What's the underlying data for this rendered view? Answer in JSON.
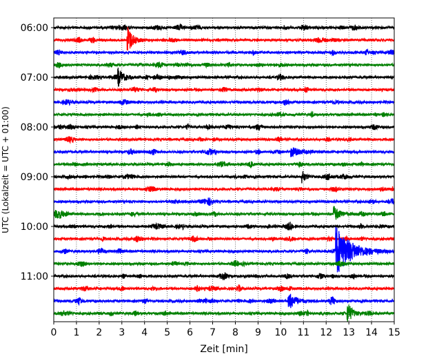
{
  "chart_data": {
    "type": "line",
    "title": "",
    "xlabel": "Zeit  [min]",
    "ylabel": "UTC (Lokalzeit = UTC + 01:00)",
    "xlim": [
      0,
      15
    ],
    "x_ticks": [
      0,
      1,
      2,
      3,
      4,
      5,
      6,
      7,
      8,
      9,
      10,
      11,
      12,
      13,
      14,
      15
    ],
    "x_tick_labels": [
      "0",
      "1",
      "2",
      "3",
      "4",
      "5",
      "6",
      "7",
      "8",
      "9",
      "10",
      "11",
      "12",
      "13",
      "14",
      "15"
    ],
    "y_tick_labels": [
      "06:00",
      "07:00",
      "08:00",
      "09:00",
      "10:00",
      "11:00"
    ],
    "y_tick_rows": [
      0,
      4,
      8,
      12,
      16,
      20
    ],
    "grid": "vertical dotted",
    "legend": "none",
    "trace_interval_minutes": 15,
    "trace_count": 24,
    "color_cycle": [
      "#000000",
      "#ff0000",
      "#0000ff",
      "#008000"
    ],
    "events": [
      {
        "trace": 1,
        "minute": 3.3,
        "amplitude": 2.4,
        "duration": 0.6
      },
      {
        "trace": 4,
        "minute": 2.9,
        "amplitude": 1.2,
        "duration": 0.7
      },
      {
        "trace": 15,
        "minute": 12.4,
        "amplitude": 1.2,
        "duration": 0.7
      },
      {
        "trace": 18,
        "minute": 12.5,
        "amplitude": 3.6,
        "duration": 1.8
      },
      {
        "trace": 22,
        "minute": 10.4,
        "amplitude": 1.3,
        "duration": 0.9
      },
      {
        "trace": 23,
        "minute": 13.0,
        "amplitude": 1.7,
        "duration": 0.6
      },
      {
        "trace": 12,
        "minute": 11.0,
        "amplitude": 0.9,
        "duration": 0.5
      },
      {
        "trace": 10,
        "minute": 10.5,
        "amplitude": 0.7,
        "duration": 1.2
      }
    ]
  }
}
